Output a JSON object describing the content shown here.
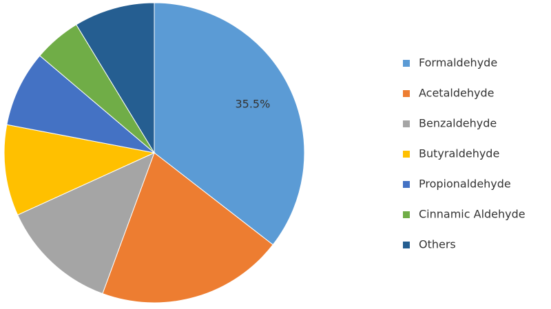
{
  "chart_data": {
    "type": "pie",
    "categories": [
      "Formaldehyde",
      "Acetaldehyde",
      "Benzaldehyde",
      "Butyraldehyde",
      "Propionaldehyde",
      "Cinnamic Aldehyde",
      "Others"
    ],
    "values": [
      35.5,
      20.1,
      12.6,
      9.8,
      8.2,
      5.1,
      8.7
    ],
    "value_labels": [
      "35.5%",
      null,
      null,
      null,
      null,
      null,
      null
    ],
    "colors": [
      "#5b9bd5",
      "#ed7d31",
      "#a5a5a5",
      "#ffc000",
      "#4472c4",
      "#70ad47",
      "#255e91"
    ],
    "legend": "right"
  }
}
